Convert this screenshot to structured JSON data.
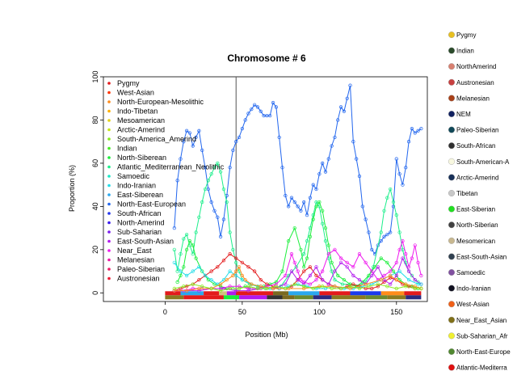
{
  "chart_data": {
    "type": "line",
    "title": "Chromosome # 6",
    "xlabel": "Position (Mb)",
    "ylabel": "Proportion (%)",
    "xlim": [
      -40,
      170
    ],
    "ylim": [
      -4,
      100
    ],
    "xticks": [
      0,
      50,
      100,
      150
    ],
    "yticks": [
      0,
      20,
      40,
      60,
      80,
      100
    ],
    "centromere_mb": 46,
    "legend_position": "top-left",
    "legend": [
      {
        "name": "Pygmy",
        "color": "#e31a1c"
      },
      {
        "name": "West-Asian",
        "color": "#ff3300"
      },
      {
        "name": "North-European-Mesolithic",
        "color": "#ff8c1a"
      },
      {
        "name": "Indo-Tibetan",
        "color": "#ffb000"
      },
      {
        "name": "Mesoamerican",
        "color": "#e5d21a"
      },
      {
        "name": "Arctic-Amerind",
        "color": "#c8e619"
      },
      {
        "name": "South-America_Amerind",
        "color": "#88ea1d"
      },
      {
        "name": "Indian",
        "color": "#44ee22"
      },
      {
        "name": "North-Siberean",
        "color": "#1aee3a"
      },
      {
        "name": "Atlantic_Mediterranean_Neolithic",
        "color": "#1aee8a"
      },
      {
        "name": "Samoedic",
        "color": "#1ae8c6"
      },
      {
        "name": "Indo-Iranian",
        "color": "#22dde8"
      },
      {
        "name": "East-Siberean",
        "color": "#2aa8ee"
      },
      {
        "name": "North-East-European",
        "color": "#2266ee"
      },
      {
        "name": "South-African",
        "color": "#2233ee"
      },
      {
        "name": "North-Amerind",
        "color": "#3a1aee"
      },
      {
        "name": "Sub-Saharian",
        "color": "#7a1aee"
      },
      {
        "name": "East-South-Asian",
        "color": "#b21aee"
      },
      {
        "name": "Near_East",
        "color": "#ee1aee"
      },
      {
        "name": "Melanesian",
        "color": "#ee1aa8"
      },
      {
        "name": "Paleo-Siberian",
        "color": "#ee1a66"
      },
      {
        "name": "Austronesian",
        "color": "#ee1a33"
      }
    ],
    "series": [
      {
        "name": "North-East-European",
        "color": "#2266ee",
        "x": [
          6,
          8,
          10,
          12,
          14,
          16,
          18,
          20,
          22,
          24,
          26,
          28,
          30,
          32,
          34,
          36,
          38,
          40,
          42,
          44,
          46,
          48,
          50,
          52,
          54,
          56,
          58,
          60,
          62,
          64,
          66,
          68,
          70,
          72,
          74,
          76,
          78,
          80,
          82,
          84,
          86,
          88,
          90,
          92,
          94,
          96,
          98,
          100,
          102,
          104,
          106,
          108,
          110,
          112,
          114,
          116,
          118,
          120,
          122,
          124,
          126,
          128,
          130,
          132,
          134,
          136,
          138,
          140,
          142,
          144,
          146,
          148,
          150,
          152,
          154,
          156,
          158,
          160,
          162,
          164,
          166
        ],
        "y": [
          30,
          52,
          62,
          70,
          75,
          74,
          68,
          72,
          75,
          66,
          58,
          48,
          42,
          38,
          35,
          26,
          34,
          45,
          58,
          66,
          70,
          72,
          76,
          80,
          83,
          85,
          87,
          86,
          84,
          82,
          82,
          82,
          88,
          86,
          72,
          58,
          45,
          40,
          44,
          42,
          40,
          38,
          42,
          36,
          44,
          50,
          48,
          55,
          60,
          56,
          62,
          68,
          72,
          80,
          86,
          84,
          90,
          96,
          70,
          62,
          54,
          40,
          34,
          28,
          20,
          18,
          22,
          24,
          26,
          27,
          28,
          40,
          62,
          55,
          50,
          58,
          70,
          76,
          74,
          75,
          76
        ]
      },
      {
        "name": "Atlantic_Mediterranean_Neolithic",
        "color": "#1aee8a",
        "x": [
          6,
          8,
          10,
          12,
          14,
          16,
          18,
          20,
          22,
          24,
          26,
          28,
          30,
          32,
          34,
          36,
          38,
          40,
          42,
          44,
          46,
          48,
          50,
          55,
          60,
          65,
          70,
          75,
          80,
          85,
          90,
          92,
          94,
          96,
          98,
          100,
          102,
          104,
          106,
          108,
          110,
          115,
          120,
          125,
          130,
          135,
          140,
          142,
          144,
          146,
          148,
          150,
          152,
          154,
          156,
          158,
          160,
          162,
          164,
          166
        ],
        "y": [
          20,
          10,
          18,
          25,
          27,
          22,
          18,
          28,
          35,
          42,
          48,
          52,
          55,
          58,
          60,
          56,
          48,
          42,
          28,
          20,
          14,
          10,
          6,
          4,
          3,
          2,
          2,
          3,
          8,
          12,
          18,
          24,
          30,
          36,
          42,
          40,
          32,
          24,
          16,
          10,
          6,
          4,
          4,
          3,
          5,
          12,
          28,
          38,
          44,
          48,
          42,
          36,
          28,
          20,
          14,
          10,
          8,
          6,
          5,
          4
        ]
      },
      {
        "name": "North-Siberean",
        "color": "#1aee3a",
        "x": [
          8,
          10,
          12,
          14,
          16,
          18,
          20,
          24,
          28,
          32,
          36,
          40,
          44,
          48,
          52,
          56,
          60,
          64,
          68,
          72,
          76,
          80,
          84,
          88,
          90,
          92,
          94,
          96,
          98,
          100,
          102,
          104,
          106,
          108,
          112,
          116,
          120,
          124,
          128,
          132,
          136,
          140,
          144,
          148,
          152,
          156,
          160,
          164,
          166
        ],
        "y": [
          5,
          8,
          12,
          20,
          24,
          22,
          16,
          10,
          6,
          4,
          3,
          2,
          2,
          2,
          3,
          2,
          2,
          3,
          4,
          5,
          10,
          24,
          30,
          20,
          12,
          16,
          26,
          34,
          40,
          42,
          38,
          30,
          22,
          14,
          8,
          6,
          4,
          3,
          5,
          8,
          12,
          16,
          14,
          10,
          6,
          4,
          3,
          2,
          2
        ]
      },
      {
        "name": "Pygmy",
        "color": "#e31a1c",
        "x": [
          6,
          10,
          14,
          18,
          22,
          26,
          30,
          34,
          38,
          42,
          46,
          50,
          54,
          58,
          62,
          66,
          70,
          74,
          78,
          82,
          86,
          90,
          94,
          98,
          102,
          106,
          110,
          114,
          118,
          122,
          126,
          130,
          134,
          138,
          142,
          146,
          150,
          154,
          158,
          162,
          166
        ],
        "y": [
          1,
          2,
          3,
          4,
          6,
          8,
          10,
          12,
          15,
          18,
          16,
          14,
          12,
          10,
          6,
          4,
          3,
          2,
          2,
          3,
          6,
          10,
          12,
          8,
          6,
          4,
          3,
          2,
          3,
          4,
          3,
          2,
          2,
          3,
          5,
          7,
          6,
          4,
          3,
          2,
          2
        ]
      },
      {
        "name": "Near_East",
        "color": "#ee1aee",
        "x": [
          6,
          12,
          18,
          24,
          30,
          36,
          42,
          48,
          54,
          60,
          66,
          72,
          78,
          82,
          84,
          86,
          88,
          90,
          94,
          98,
          102,
          106,
          110,
          114,
          118,
          122,
          126,
          130,
          134,
          138,
          142,
          146,
          150,
          152,
          154,
          156,
          158,
          160,
          162,
          164,
          166
        ],
        "y": [
          1,
          1,
          2,
          2,
          2,
          2,
          3,
          3,
          2,
          2,
          3,
          4,
          8,
          18,
          14,
          10,
          6,
          5,
          4,
          6,
          10,
          18,
          20,
          16,
          14,
          12,
          18,
          14,
          10,
          6,
          8,
          10,
          14,
          20,
          24,
          18,
          12,
          16,
          22,
          14,
          8
        ]
      },
      {
        "name": "East-South-Asian",
        "color": "#b21aee",
        "x": [
          6,
          14,
          22,
          30,
          38,
          46,
          54,
          62,
          70,
          78,
          82,
          86,
          90,
          94,
          98,
          102,
          106,
          110,
          114,
          118,
          122,
          126,
          130,
          134,
          138,
          142,
          146,
          150,
          154,
          158,
          162,
          166
        ],
        "y": [
          1,
          1,
          1,
          2,
          2,
          1,
          1,
          2,
          2,
          4,
          10,
          6,
          4,
          8,
          12,
          6,
          4,
          10,
          14,
          12,
          8,
          6,
          4,
          8,
          12,
          6,
          4,
          8,
          16,
          10,
          6,
          4
        ]
      },
      {
        "name": "Indo-Iranian",
        "color": "#22dde8",
        "x": [
          6,
          10,
          14,
          18,
          22,
          26,
          30,
          34,
          38,
          42,
          46,
          50,
          56,
          62,
          68,
          74,
          80,
          86,
          92,
          98,
          104,
          110,
          116,
          122,
          128,
          134,
          140,
          146,
          152,
          158,
          164,
          166
        ],
        "y": [
          14,
          10,
          8,
          10,
          12,
          8,
          6,
          4,
          6,
          10,
          8,
          6,
          4,
          3,
          2,
          2,
          3,
          4,
          3,
          2,
          2,
          3,
          2,
          2,
          3,
          4,
          6,
          8,
          10,
          6,
          4,
          4
        ]
      },
      {
        "name": "North-European-Mesolithic",
        "color": "#ff8c1a",
        "x": [
          6,
          14,
          22,
          30,
          36,
          40,
          44,
          46,
          48,
          50,
          52,
          56,
          62,
          70,
          80,
          90,
          100,
          110,
          120,
          130,
          140,
          146,
          150,
          156,
          162,
          166
        ],
        "y": [
          1,
          1,
          2,
          2,
          4,
          6,
          8,
          10,
          12,
          8,
          6,
          4,
          3,
          2,
          2,
          2,
          3,
          3,
          2,
          4,
          6,
          8,
          6,
          4,
          3,
          2
        ]
      },
      {
        "name": "South-America_Amerind",
        "color": "#88ea1d",
        "x": [
          6,
          12,
          18,
          24,
          30,
          36,
          42,
          48,
          54,
          60,
          66,
          72,
          78,
          84,
          90,
          96,
          102,
          108,
          114,
          120,
          126,
          132,
          138,
          144,
          150,
          156,
          162,
          166
        ],
        "y": [
          2,
          3,
          4,
          3,
          2,
          1,
          2,
          2,
          3,
          2,
          2,
          3,
          2,
          4,
          3,
          2,
          3,
          2,
          2,
          3,
          2,
          3,
          4,
          3,
          2,
          3,
          2,
          2
        ]
      }
    ],
    "track_blocks": [
      {
        "start": 0,
        "end": 10,
        "color": "#e31a1c"
      },
      {
        "start": 10,
        "end": 25,
        "color": "#2aa8ee"
      },
      {
        "start": 25,
        "end": 35,
        "color": "#e31a1c"
      },
      {
        "start": 35,
        "end": 40,
        "color": "#d4c080"
      },
      {
        "start": 40,
        "end": 46,
        "color": "#b21aee"
      },
      {
        "start": 46,
        "end": 70,
        "color": "#e31a1c"
      },
      {
        "start": 70,
        "end": 80,
        "color": "#7a6a20"
      },
      {
        "start": 80,
        "end": 100,
        "color": "#2aa8ee"
      },
      {
        "start": 100,
        "end": 120,
        "color": "#e31a1c"
      },
      {
        "start": 120,
        "end": 140,
        "color": "#1a3aee"
      },
      {
        "start": 140,
        "end": 155,
        "color": "#ff8c1a"
      },
      {
        "start": 155,
        "end": 166,
        "color": "#e31a1c"
      }
    ],
    "track_blocks_2": [
      {
        "start": 0,
        "end": 12,
        "color": "#8a7a20"
      },
      {
        "start": 12,
        "end": 38,
        "color": "#e31a1c"
      },
      {
        "start": 38,
        "end": 48,
        "color": "#1aee3a"
      },
      {
        "start": 48,
        "end": 66,
        "color": "#b21aee"
      },
      {
        "start": 66,
        "end": 76,
        "color": "#333333"
      },
      {
        "start": 76,
        "end": 84,
        "color": "#7a6a20"
      },
      {
        "start": 84,
        "end": 96,
        "color": "#6a8a30"
      },
      {
        "start": 96,
        "end": 108,
        "color": "#2a2a80"
      },
      {
        "start": 108,
        "end": 130,
        "color": "#8a7a20"
      },
      {
        "start": 130,
        "end": 144,
        "color": "#6a8a30"
      },
      {
        "start": 144,
        "end": 156,
        "color": "#8a7a20"
      },
      {
        "start": 156,
        "end": 166,
        "color": "#2a2a80"
      }
    ]
  },
  "side_legend": [
    {
      "name": "Pygmy",
      "color": "#e8c020"
    },
    {
      "name": "Indian",
      "color": "#2a4a2a"
    },
    {
      "name": "NorthAmerind",
      "color": "#d88070"
    },
    {
      "name": "Austronesian",
      "color": "#c84040"
    },
    {
      "name": " Melanesian",
      "color": "#a84018"
    },
    {
      "name": "NEM",
      "color": "#102060"
    },
    {
      "name": "Paleo-Siberian",
      "color": "#104858"
    },
    {
      "name": "South-African",
      "color": "#303030"
    },
    {
      "name": "South-American-A",
      "color": "#f8f8e0"
    },
    {
      "name": "Arctic-Amerind",
      "color": "#183058"
    },
    {
      "name": "Tibetan",
      "color": "#c8c8c8"
    },
    {
      "name": "East-Siberian",
      "color": "#20e020"
    },
    {
      "name": "North-Siberian",
      "color": "#404040"
    },
    {
      "name": " Mesomerican",
      "color": "#c8b890"
    },
    {
      "name": "East-South-Asian",
      "color": "#304050"
    },
    {
      "name": "Samoedic",
      "color": "#8050a0"
    },
    {
      "name": "Indo-Iranian",
      "color": "#101020"
    },
    {
      "name": "West-Asian",
      "color": "#f06018"
    },
    {
      "name": "Near_East_Asian",
      "color": "#807018"
    },
    {
      "name": "Sub-Saharian_Afr",
      "color": "#f0f030"
    },
    {
      "name": "North-East-Europe",
      "color": "#508830"
    },
    {
      "name": "Atlantic-Mediterra",
      "color": "#e01010"
    }
  ]
}
